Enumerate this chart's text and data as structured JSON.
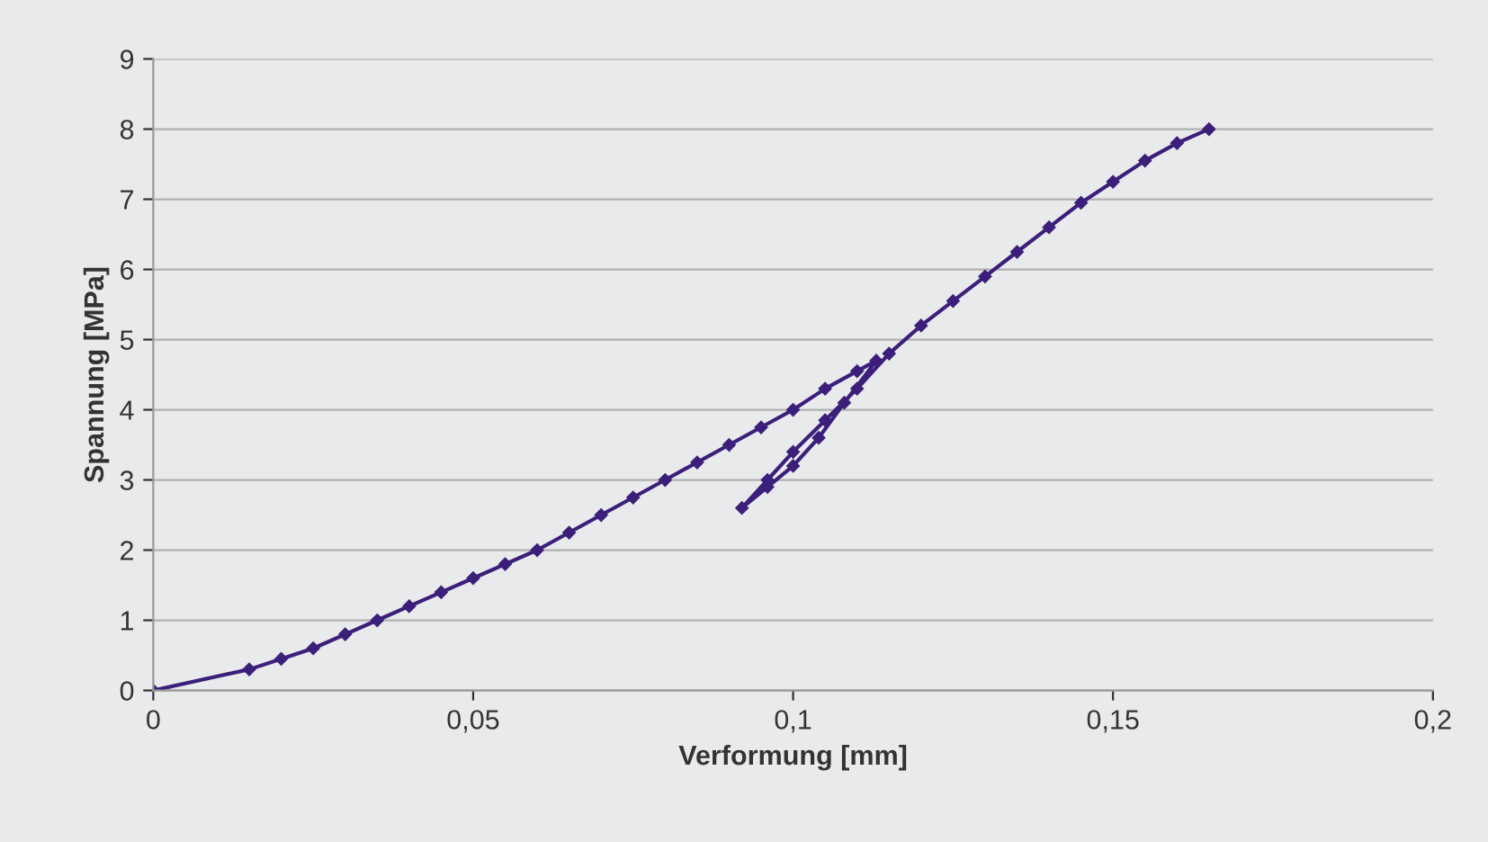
{
  "chart_data": {
    "type": "line",
    "xlabel": "Verformung [mm]",
    "ylabel": "Spannung [MPa]",
    "xlim": [
      0,
      0.2
    ],
    "xticks": [
      0,
      {
        "value": 0.05,
        "label": "0,05"
      },
      {
        "value": 0.1,
        "label": "0,1"
      },
      {
        "value": 0.15,
        "label": "0,15"
      },
      {
        "value": 0.2,
        "label": "0,2"
      }
    ],
    "ylim": [
      0,
      9
    ],
    "yticks": [
      0,
      1,
      2,
      3,
      4,
      5,
      6,
      7,
      8,
      9
    ],
    "grid": "y",
    "marker": "diamond",
    "line_style": "solid",
    "legend": false,
    "series": [
      {
        "color": "#3b1f7a",
        "x": [
          0,
          0.015,
          0.02,
          0.025,
          0.03,
          0.035,
          0.04,
          0.045,
          0.05,
          0.055,
          0.06,
          0.065,
          0.07,
          0.075,
          0.08,
          0.085,
          0.09,
          0.095,
          0.1,
          0.105,
          0.11,
          0.113,
          0.108,
          0.104,
          0.1,
          0.096,
          0.092,
          0.096,
          0.1,
          0.105,
          0.11,
          0.115,
          0.12,
          0.125,
          0.13,
          0.135,
          0.14,
          0.145,
          0.15,
          0.155,
          0.16,
          0.165
        ],
        "values": [
          0,
          0.3,
          0.45,
          0.6,
          0.8,
          1.0,
          1.2,
          1.4,
          1.6,
          1.8,
          2.0,
          2.25,
          2.5,
          2.75,
          3.0,
          3.25,
          3.5,
          3.75,
          4.0,
          4.3,
          4.55,
          4.7,
          4.1,
          3.6,
          3.2,
          2.9,
          2.6,
          3.0,
          3.4,
          3.85,
          4.3,
          4.8,
          5.2,
          5.55,
          5.9,
          6.25,
          6.6,
          6.95,
          7.25,
          7.55,
          7.8,
          8.0
        ]
      }
    ]
  }
}
